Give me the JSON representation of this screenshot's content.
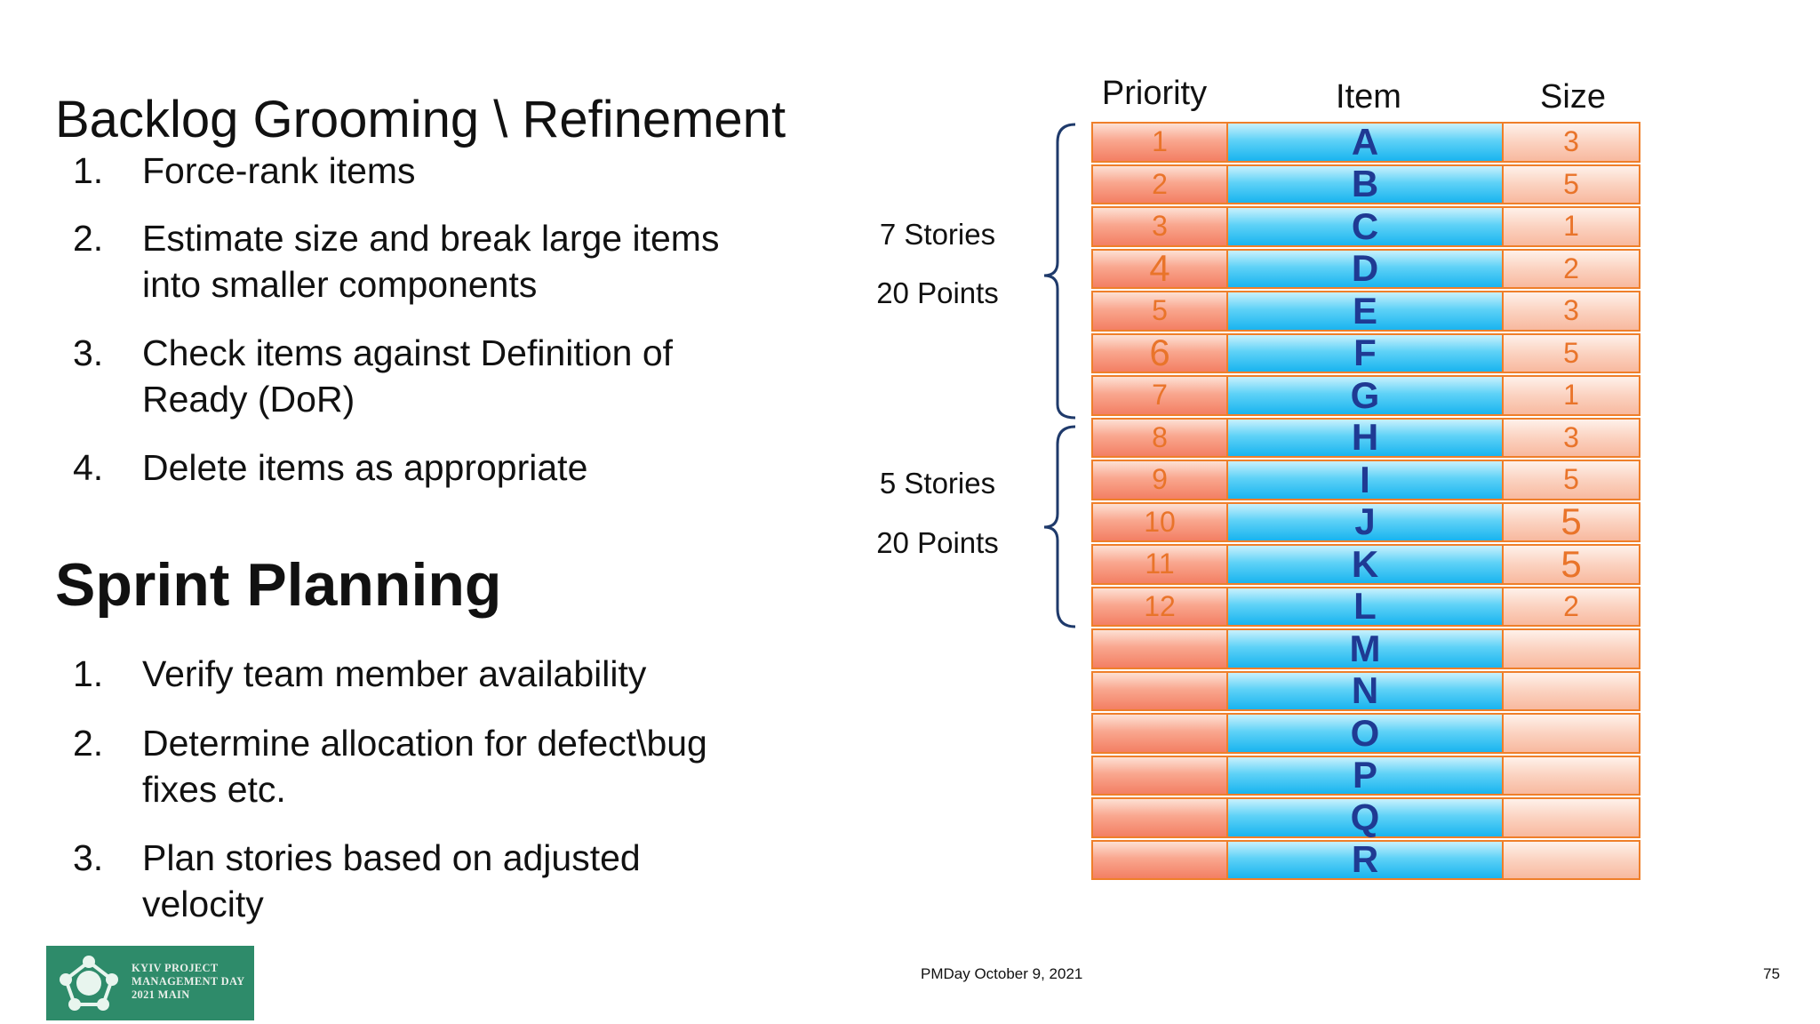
{
  "backlog": {
    "title": "Backlog Grooming \\ Refinement",
    "items": [
      {
        "num": "1.",
        "text": "Force-rank items"
      },
      {
        "num": "2.",
        "text": "Estimate size and break large items into smaller components"
      },
      {
        "num": "3.",
        "text": "Check items against Definition of Ready (DoR)"
      },
      {
        "num": "4.",
        "text": "Delete items as appropriate"
      }
    ]
  },
  "sprint": {
    "title": "Sprint Planning",
    "items": [
      {
        "num": "1.",
        "text": "Verify team member availability"
      },
      {
        "num": "2.",
        "text": "Determine allocation for defect\\bug fixes etc."
      },
      {
        "num": "3.",
        "text": "Plan stories based on adjusted velocity"
      }
    ]
  },
  "groups": [
    {
      "stories": "7 Stories",
      "points": "20 Points"
    },
    {
      "stories": "5 Stories",
      "points": "20 Points"
    }
  ],
  "table": {
    "headers": {
      "priority": "Priority",
      "item": "Item",
      "size": "Size"
    },
    "rows": [
      {
        "priority": "1",
        "item": "A",
        "size": "3"
      },
      {
        "priority": "2",
        "item": "B",
        "size": "5"
      },
      {
        "priority": "3",
        "item": "C",
        "size": "1"
      },
      {
        "priority": "4",
        "item": "D",
        "size": "2"
      },
      {
        "priority": "5",
        "item": "E",
        "size": "3"
      },
      {
        "priority": "6",
        "item": "F",
        "size": "5"
      },
      {
        "priority": "7",
        "item": "G",
        "size": "1"
      },
      {
        "priority": "8",
        "item": "H",
        "size": "3"
      },
      {
        "priority": "9",
        "item": "I",
        "size": "5"
      },
      {
        "priority": "10",
        "item": "J",
        "size": "5"
      },
      {
        "priority": "11",
        "item": "K",
        "size": "5"
      },
      {
        "priority": "12",
        "item": "L",
        "size": "2"
      },
      {
        "priority": "",
        "item": "M",
        "size": ""
      },
      {
        "priority": "",
        "item": "N",
        "size": ""
      },
      {
        "priority": "",
        "item": "O",
        "size": ""
      },
      {
        "priority": "",
        "item": "P",
        "size": ""
      },
      {
        "priority": "",
        "item": "Q",
        "size": ""
      },
      {
        "priority": "",
        "item": "R",
        "size": ""
      }
    ]
  },
  "footer": {
    "event": "PMDay October 9, 2021",
    "page": "75",
    "logo_text": "KYIV PROJECT MANAGEMENT DAY 2021 MAIN"
  },
  "colors": {
    "priority_text": "#e9742a",
    "item_text": "#1f3a93",
    "cell_border": "#ef7f2a",
    "logo_bg": "#2e8b6a",
    "brace": "#1f3a6b"
  }
}
